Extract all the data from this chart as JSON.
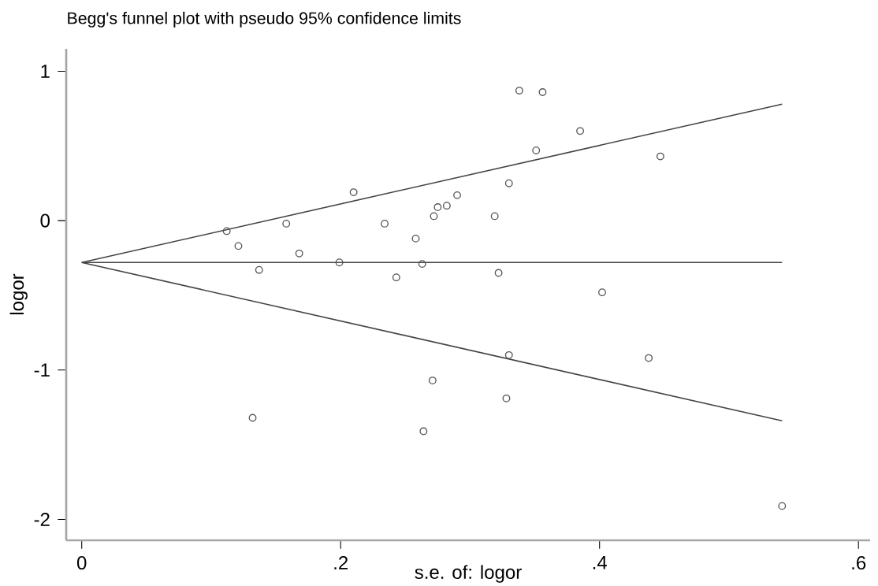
{
  "chart_data": {
    "type": "scatter",
    "title": "Begg's funnel plot with pseudo 95% confidence limits",
    "xlabel": "s.e. of: logor",
    "ylabel": "logor",
    "xlim": [
      -0.012,
      0.609
    ],
    "ylim": [
      -2.14,
      1.15
    ],
    "xticks": [
      {
        "value": 0,
        "label": "0"
      },
      {
        "value": 0.2,
        "label": ".2"
      },
      {
        "value": 0.4,
        "label": ".4"
      },
      {
        "value": 0.6,
        "label": ".6"
      }
    ],
    "yticks": [
      -2,
      -1,
      0,
      1
    ],
    "grid": false,
    "series": [
      {
        "type": "scatter",
        "color": "#555555",
        "marker": "circle",
        "x": [
          0.112,
          0.121,
          0.137,
          0.132,
          0.158,
          0.168,
          0.199,
          0.21,
          0.234,
          0.243,
          0.258,
          0.263,
          0.271,
          0.264,
          0.272,
          0.275,
          0.282,
          0.29,
          0.319,
          0.322,
          0.33,
          0.33,
          0.328,
          0.338,
          0.356,
          0.351,
          0.385,
          0.402,
          0.438,
          0.447,
          0.541
        ],
        "values": [
          -0.07,
          -0.17,
          -0.33,
          -1.32,
          -0.02,
          -0.22,
          -0.28,
          0.19,
          -0.02,
          -0.38,
          -0.12,
          -0.29,
          -1.07,
          -1.41,
          0.03,
          0.09,
          0.1,
          0.17,
          0.03,
          -0.35,
          0.25,
          -0.9,
          -1.19,
          0.87,
          0.86,
          0.47,
          0.6,
          -0.48,
          -0.92,
          0.43,
          -1.91
        ]
      },
      {
        "type": "line",
        "color": "#444444",
        "marker": "none",
        "line_style": "solid",
        "x": [
          0,
          0.541
        ],
        "values": [
          -0.28,
          0.78
        ]
      },
      {
        "type": "line",
        "color": "#444444",
        "marker": "none",
        "line_style": "solid",
        "x": [
          0,
          0.541
        ],
        "values": [
          -0.28,
          -0.28
        ]
      },
      {
        "type": "line",
        "color": "#444444",
        "marker": "none",
        "line_style": "solid",
        "x": [
          0,
          0.541
        ],
        "values": [
          -0.28,
          -1.34
        ]
      }
    ]
  }
}
